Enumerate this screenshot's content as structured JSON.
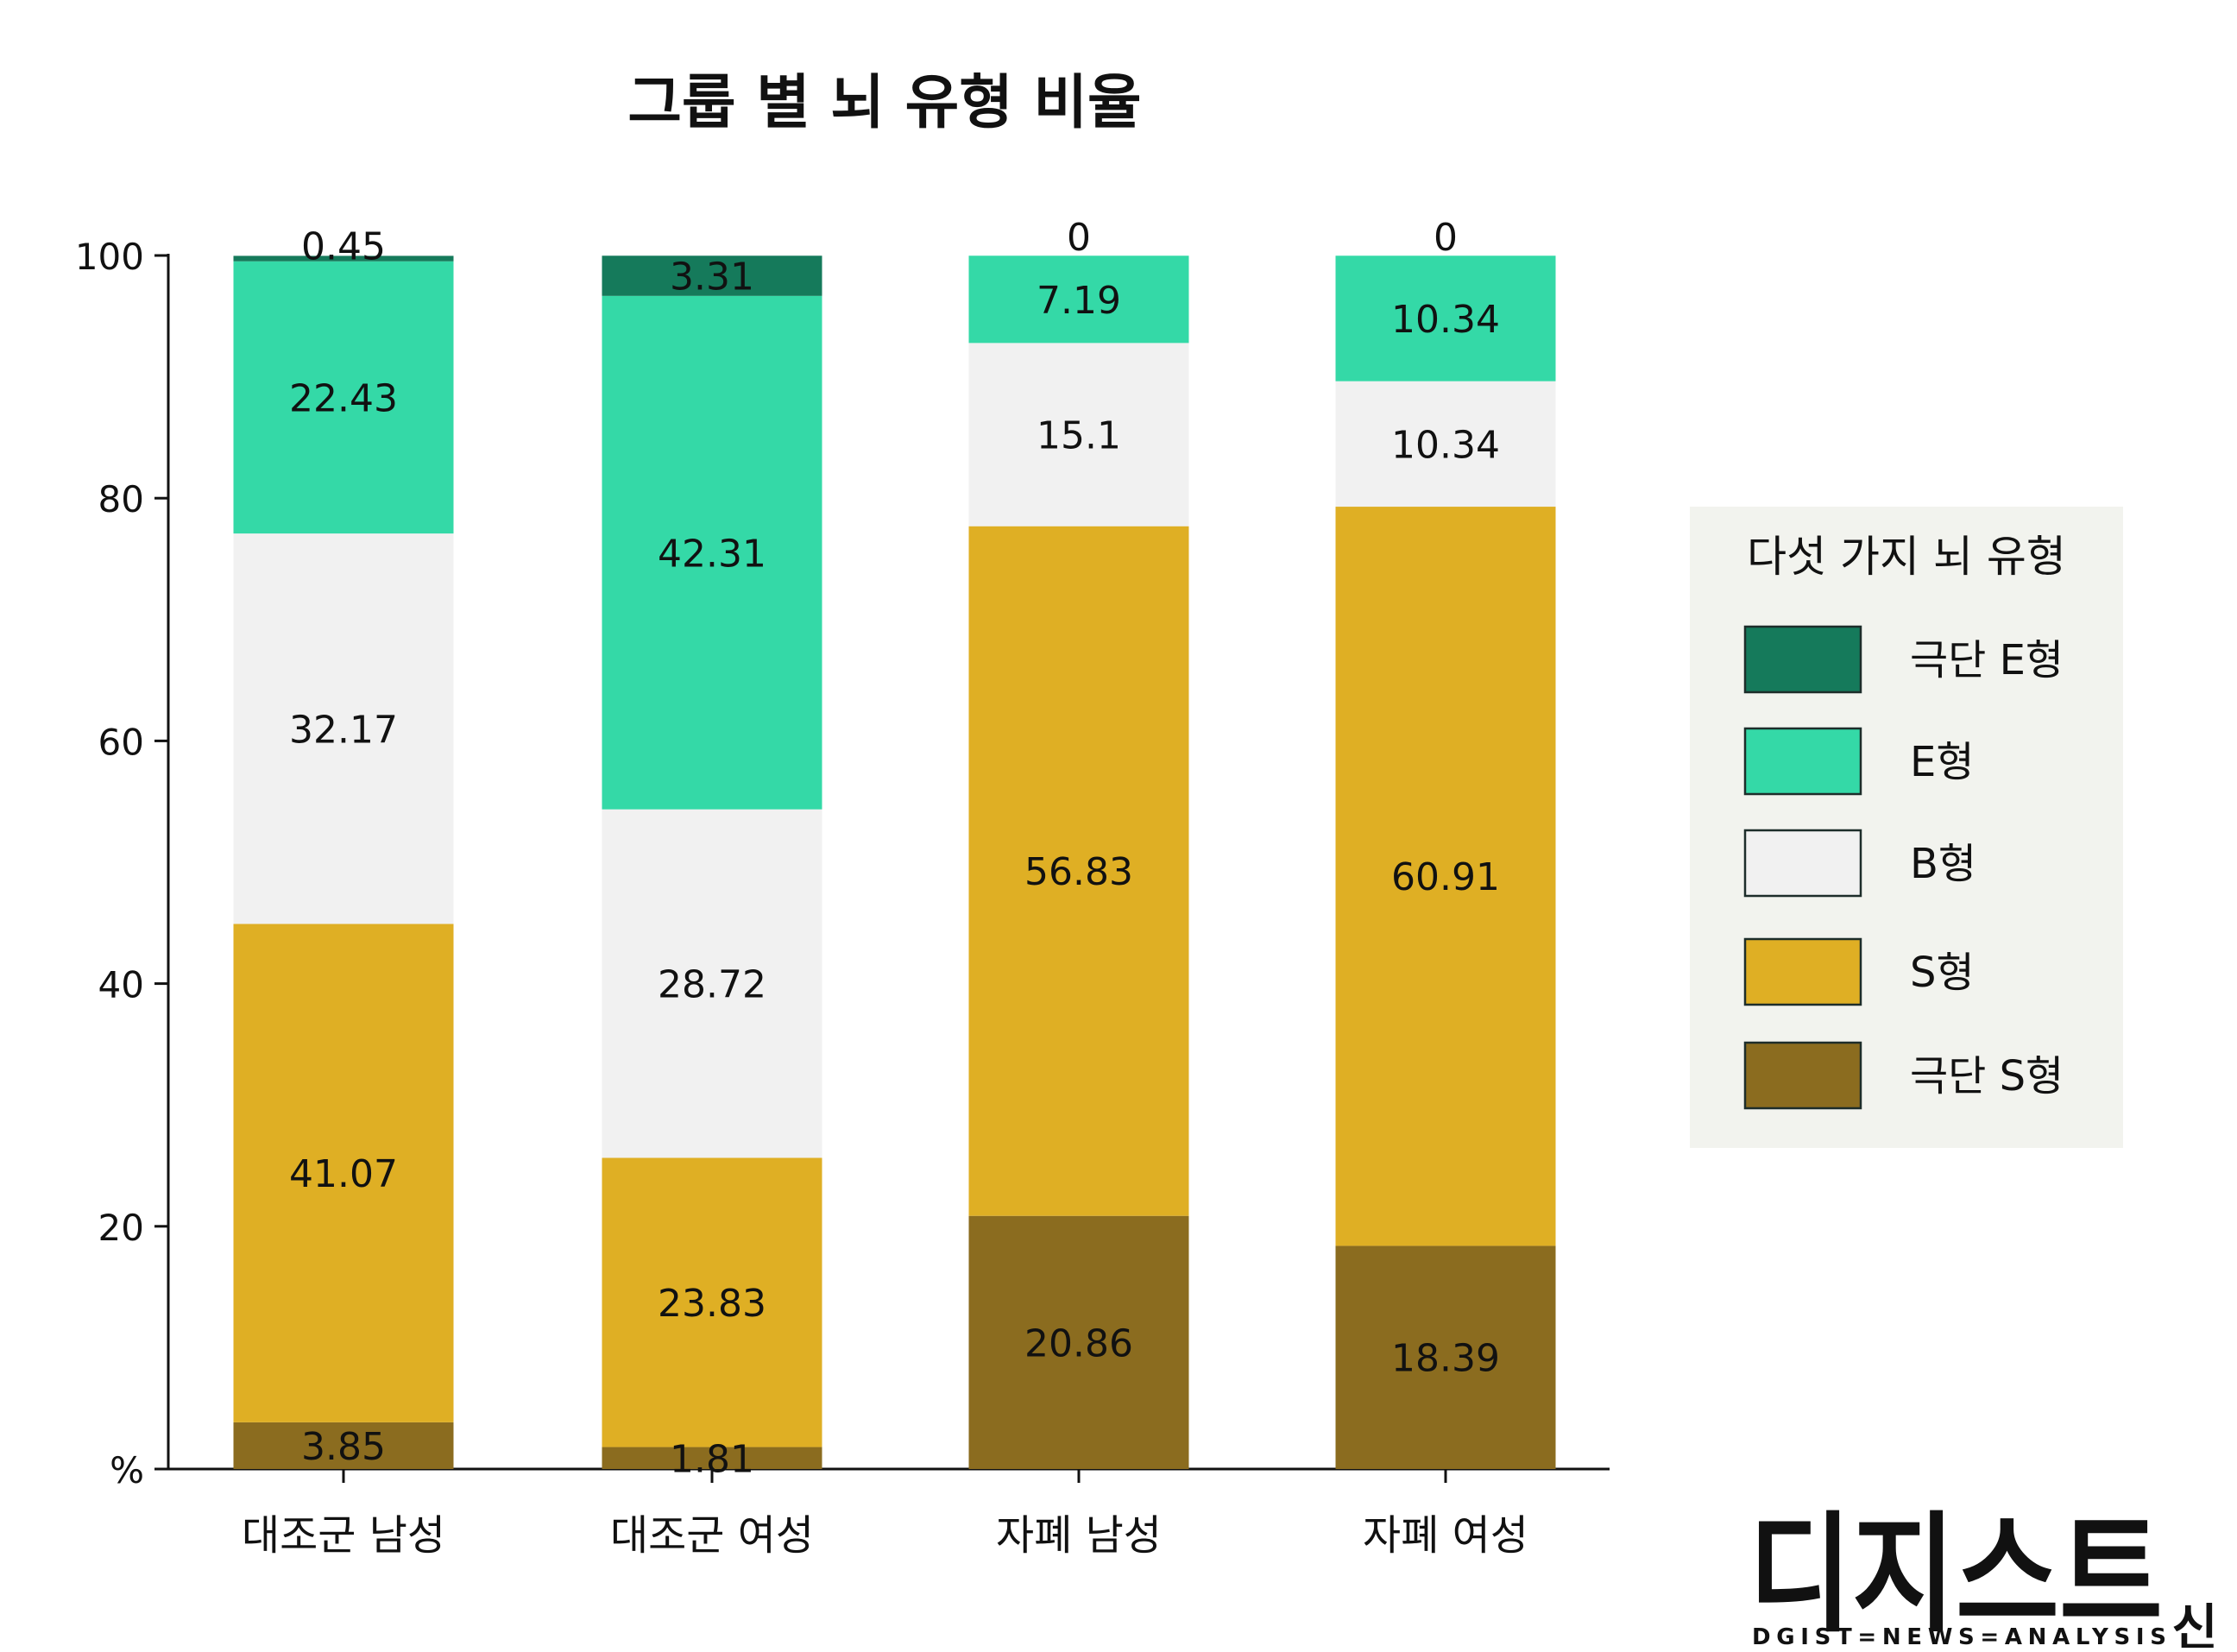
{
  "chart_data": {
    "type": "bar",
    "stacked": true,
    "title": "그룹 별 뇌 유형 비율",
    "ylabel": "%",
    "ylim": [
      0,
      100
    ],
    "yticks": [
      0,
      20,
      40,
      60,
      80,
      100
    ],
    "ytick_labels": [
      "%",
      "20",
      "40",
      "60",
      "80",
      "100"
    ],
    "categories": [
      "대조군 남성",
      "대조군 여성",
      "자폐 남성",
      "자폐 여성"
    ],
    "series": [
      {
        "name": "극단 S형",
        "color": "#8b6c1f",
        "values": [
          3.85,
          1.81,
          20.86,
          18.39
        ],
        "labels": [
          "3.85",
          "1.81",
          "20.86",
          "18.39"
        ]
      },
      {
        "name": "S형",
        "color": "#dfaf24",
        "values": [
          41.07,
          23.83,
          56.83,
          60.91
        ],
        "labels": [
          "41.07",
          "23.83",
          "56.83",
          "60.91"
        ]
      },
      {
        "name": "B형",
        "color": "#f1f1f1",
        "values": [
          32.17,
          28.72,
          15.1,
          10.34
        ],
        "labels": [
          "32.17",
          "28.72",
          "15.1",
          "10.34"
        ]
      },
      {
        "name": "E형",
        "color": "#34d9a7",
        "values": [
          22.43,
          42.31,
          7.19,
          10.34
        ],
        "labels": [
          "22.43",
          "42.31",
          "7.19",
          "10.34"
        ]
      },
      {
        "name": "극단 E형",
        "color": "#157a5b",
        "values": [
          0.45,
          3.31,
          0,
          0
        ],
        "labels": [
          "0.45",
          "3.31",
          "0",
          "0"
        ]
      }
    ],
    "legend": {
      "title": "다섯 가지 뇌 유형",
      "position": "right",
      "background": "#f2f3ee",
      "entries": [
        "극단 E형",
        "E형",
        "B형",
        "S형",
        "극단 S형"
      ]
    }
  },
  "branding": {
    "logo_text": "디지스트",
    "logo_side_text": "신문",
    "tagline": "DGIST=NEWS=ANALYSIS",
    "tagline_color": "#1f5fb0"
  }
}
